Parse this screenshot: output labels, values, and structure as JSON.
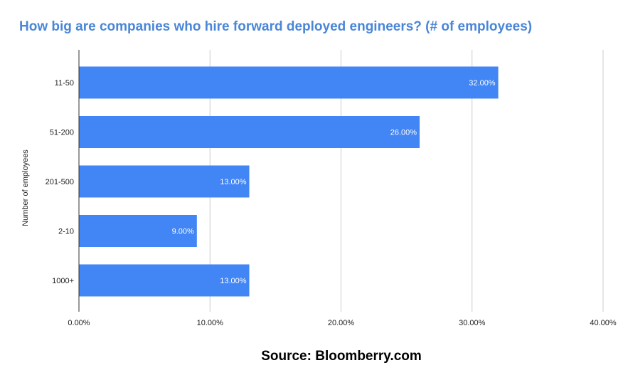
{
  "chart_data": {
    "type": "bar",
    "orientation": "horizontal",
    "title": "How big are companies who hire forward deployed engineers? (# of employees)",
    "ylabel": "Number of employees",
    "xlabel": "",
    "categories": [
      "11-50",
      "51-200",
      "201-500",
      "2-10",
      "1000+"
    ],
    "values": [
      32,
      26,
      13,
      9,
      13
    ],
    "value_labels": [
      "32.00%",
      "26.00%",
      "13.00%",
      "9.00%",
      "13.00%"
    ],
    "xlim": [
      0,
      40
    ],
    "xticks": [
      0,
      10,
      20,
      30,
      40
    ],
    "xtick_labels": [
      "0.00%",
      "10.00%",
      "20.00%",
      "30.00%",
      "40.00%"
    ],
    "grid": true,
    "legend": "none"
  },
  "colors": {
    "bar": "#4285f4",
    "title": "#4a86d8",
    "grid": "#cccccc",
    "axis": "#333333",
    "text": "#222222",
    "bar_label": "#ffffff"
  },
  "source": "Source: Bloomberry.com"
}
